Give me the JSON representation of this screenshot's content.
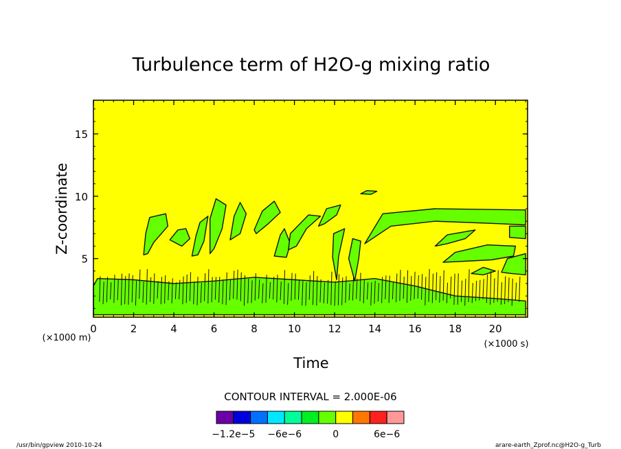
{
  "chart_data": {
    "type": "heatmap",
    "title": "Turbulence term of H2O-g mixing ratio",
    "xlabel": "Time",
    "ylabel": "Z-coordinate",
    "x_unit": "(×1000 s)",
    "y_unit": "(×1000 m)",
    "xlim": [
      0,
      21.6
    ],
    "ylim": [
      0.3,
      17.7
    ],
    "xticks": [
      0,
      2,
      4,
      6,
      8,
      10,
      12,
      14,
      16,
      18,
      20
    ],
    "yticks": [
      5,
      10,
      15
    ],
    "xtick_labels": [
      "0",
      "2",
      "4",
      "6",
      "8",
      "10",
      "12",
      "14",
      "16",
      "18",
      "20"
    ],
    "ytick_labels": [
      "5",
      "10",
      "15"
    ],
    "background_level": "0 to 2e-6 (yellow)",
    "contour_interval_label": "CONTOUR INTERVAL = 2.000E-06",
    "colorbar": {
      "levels": [
        -1.4e-05,
        -1.2e-05,
        -1e-05,
        -8e-06,
        -6e-06,
        -4e-06,
        -2e-06,
        0,
        2e-06,
        4e-06,
        6e-06,
        8e-06
      ],
      "colors": [
        "#6a00a8",
        "#0000dd",
        "#0070ff",
        "#00e8ff",
        "#00ff99",
        "#00ee22",
        "#66ff00",
        "#ffff00",
        "#ff7700",
        "#ff2020",
        "#ff9999"
      ],
      "tick_labels": [
        "−1.2e−5",
        "−6e−6",
        "0",
        "6e−6"
      ],
      "tick_values": [
        -1.2e-05,
        -6e-06,
        0,
        6e-06
      ]
    },
    "regions": [
      {
        "level": "-2e-6 to 0",
        "color": "#66ff00",
        "description": "Low-level band and rising plumes",
        "points": [
          [
            0,
            0.5
          ],
          [
            21.5,
            0.5
          ],
          [
            21.5,
            1.6
          ],
          [
            20,
            1.8
          ],
          [
            18,
            2.0
          ],
          [
            16,
            2.8
          ],
          [
            14,
            3.4
          ],
          [
            12,
            3.1
          ],
          [
            10,
            3.3
          ],
          [
            8,
            3.5
          ],
          [
            6,
            3.2
          ],
          [
            4,
            3.0
          ],
          [
            2,
            3.3
          ],
          [
            0.2,
            3.4
          ],
          [
            0,
            2.8
          ]
        ]
      },
      {
        "level": "-2e-6 to 0",
        "color": "#66ff00",
        "points": [
          [
            12.1,
            3.3
          ],
          [
            11.9,
            5.1
          ],
          [
            11.95,
            7.0
          ],
          [
            12.5,
            7.4
          ],
          [
            12.2,
            5.2
          ]
        ]
      },
      {
        "level": "-2e-6 to 0",
        "color": "#66ff00",
        "points": [
          [
            13.0,
            3.2
          ],
          [
            12.7,
            5.0
          ],
          [
            12.9,
            6.6
          ],
          [
            13.3,
            6.4
          ],
          [
            13.2,
            5.0
          ]
        ]
      },
      {
        "level": "-2e-6 to 0",
        "color": "#66ff00",
        "points": [
          [
            13.5,
            6.2
          ],
          [
            14.4,
            8.6
          ],
          [
            17,
            9.0
          ],
          [
            21.5,
            8.9
          ],
          [
            21.5,
            7.7
          ],
          [
            20.2,
            7.8
          ],
          [
            17,
            8.0
          ],
          [
            14.8,
            7.6
          ]
        ]
      },
      {
        "level": "-2e-6 to 0",
        "color": "#66ff00",
        "points": [
          [
            17.0,
            6.0
          ],
          [
            17.6,
            6.9
          ],
          [
            19.0,
            7.3
          ],
          [
            18.5,
            6.6
          ],
          [
            17.6,
            6.2
          ]
        ]
      },
      {
        "level": "-2e-6 to 0",
        "color": "#66ff00",
        "points": [
          [
            17.4,
            4.7
          ],
          [
            18.0,
            5.5
          ],
          [
            19.6,
            6.1
          ],
          [
            21.0,
            6.0
          ],
          [
            20.9,
            5.2
          ],
          [
            19.8,
            4.9
          ]
        ]
      },
      {
        "level": "-2e-6 to 0",
        "color": "#66ff00",
        "points": [
          [
            20.3,
            3.9
          ],
          [
            20.6,
            5.0
          ],
          [
            21.5,
            5.4
          ],
          [
            21.5,
            3.7
          ],
          [
            20.8,
            3.8
          ]
        ]
      },
      {
        "level": "-2e-6 to 0",
        "color": "#66ff00",
        "points": [
          [
            18.8,
            3.8
          ],
          [
            19.4,
            4.3
          ],
          [
            20.0,
            4.0
          ],
          [
            19.4,
            3.7
          ]
        ]
      },
      {
        "level": "-2e-6 to 0",
        "color": "#66ff00",
        "points": [
          [
            20.7,
            7.6
          ],
          [
            21.5,
            7.6
          ],
          [
            21.5,
            6.6
          ],
          [
            20.7,
            6.7
          ]
        ]
      },
      {
        "level": "-2e-6 to 0",
        "color": "#66ff00",
        "points": [
          [
            13.3,
            10.2
          ],
          [
            13.6,
            10.45
          ],
          [
            14.1,
            10.4
          ],
          [
            13.8,
            10.15
          ]
        ]
      },
      {
        "level": "-2e-6 to 0",
        "color": "#66ff00",
        "points": [
          [
            2.5,
            5.3
          ],
          [
            2.6,
            7.0
          ],
          [
            2.8,
            8.3
          ],
          [
            3.6,
            8.6
          ],
          [
            3.7,
            7.6
          ],
          [
            3.0,
            6.3
          ],
          [
            2.7,
            5.4
          ]
        ]
      },
      {
        "level": "-2e-6 to 0",
        "color": "#66ff00",
        "points": [
          [
            3.8,
            6.5
          ],
          [
            4.2,
            7.3
          ],
          [
            4.6,
            7.4
          ],
          [
            4.8,
            6.6
          ],
          [
            4.4,
            6.0
          ]
        ]
      },
      {
        "level": "-2e-6 to 0",
        "color": "#66ff00",
        "points": [
          [
            4.9,
            5.2
          ],
          [
            5.1,
            6.8
          ],
          [
            5.3,
            7.9
          ],
          [
            5.7,
            8.4
          ],
          [
            5.5,
            6.4
          ],
          [
            5.2,
            5.3
          ]
        ]
      },
      {
        "level": "-2e-6 to 0",
        "color": "#66ff00",
        "points": [
          [
            5.8,
            5.4
          ],
          [
            5.8,
            8.2
          ],
          [
            6.1,
            9.8
          ],
          [
            6.6,
            9.3
          ],
          [
            6.4,
            7.4
          ],
          [
            6.0,
            5.8
          ]
        ]
      },
      {
        "level": "-2e-6 to 0",
        "color": "#66ff00",
        "points": [
          [
            6.8,
            6.5
          ],
          [
            7.0,
            8.4
          ],
          [
            7.3,
            9.5
          ],
          [
            7.6,
            8.6
          ],
          [
            7.3,
            7.0
          ]
        ]
      },
      {
        "level": "-2e-6 to 0",
        "color": "#66ff00",
        "points": [
          [
            8.0,
            7.3
          ],
          [
            8.4,
            8.8
          ],
          [
            9.0,
            9.6
          ],
          [
            9.3,
            8.7
          ],
          [
            8.7,
            7.8
          ],
          [
            8.1,
            7.0
          ]
        ]
      },
      {
        "level": "-2e-6 to 0",
        "color": "#66ff00",
        "points": [
          [
            9.0,
            5.2
          ],
          [
            9.3,
            6.9
          ],
          [
            9.5,
            7.4
          ],
          [
            9.8,
            6.2
          ],
          [
            9.6,
            5.1
          ]
        ]
      },
      {
        "level": "-2e-6 to 0",
        "color": "#66ff00",
        "points": [
          [
            9.7,
            5.7
          ],
          [
            9.8,
            7.0
          ],
          [
            10.7,
            8.5
          ],
          [
            11.3,
            8.4
          ],
          [
            10.6,
            7.4
          ],
          [
            10.1,
            6.0
          ]
        ]
      },
      {
        "level": "-2e-6 to 0",
        "color": "#66ff00",
        "points": [
          [
            11.2,
            7.6
          ],
          [
            11.6,
            9.0
          ],
          [
            12.3,
            9.3
          ],
          [
            12.1,
            8.5
          ],
          [
            11.5,
            7.8
          ]
        ]
      }
    ],
    "annotations": {
      "bottom_left": "/usr/bin/gpview  2010-10-24",
      "bottom_right": "arare-earth_Zprof.nc@H2O-g_Turb"
    }
  }
}
